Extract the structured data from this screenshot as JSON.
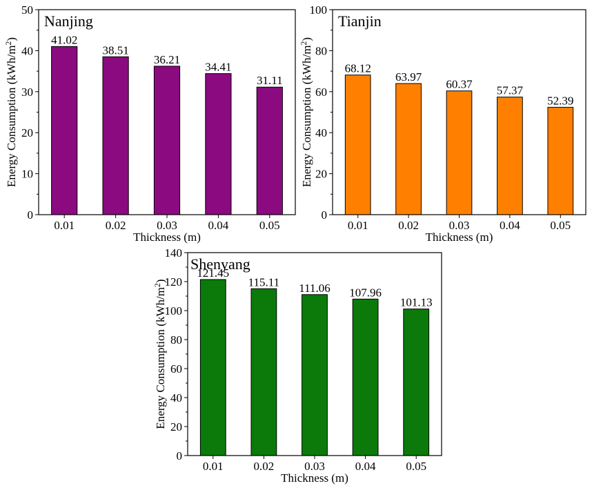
{
  "chart_data": [
    {
      "type": "bar",
      "title": "Nanjing",
      "categories": [
        "0.01",
        "0.02",
        "0.03",
        "0.04",
        "0.05"
      ],
      "values": [
        41.02,
        38.51,
        36.21,
        34.41,
        31.11
      ],
      "value_labels": [
        "41.02",
        "38.51",
        "36.21",
        "34.41",
        "31.11"
      ],
      "xlabel": "Thickness (m)",
      "ylabel": "Energy Consumption (kWh/m",
      "ylabel_sup": "2",
      "ylabel_end": ")",
      "ylim": [
        0,
        50
      ],
      "yticks": [
        0,
        10,
        20,
        30,
        40,
        50
      ],
      "color": "#8b0a80"
    },
    {
      "type": "bar",
      "title": "Tianjin",
      "categories": [
        "0.01",
        "0.02",
        "0.03",
        "0.04",
        "0.05"
      ],
      "values": [
        68.12,
        63.97,
        60.37,
        57.37,
        52.39
      ],
      "value_labels": [
        "68.12",
        "63.97",
        "60.37",
        "57.37",
        "52.39"
      ],
      "xlabel": "Thickness (m)",
      "ylabel": "Energy Consumption (kWh/m",
      "ylabel_sup": "2",
      "ylabel_end": ")",
      "ylim": [
        0,
        100
      ],
      "yticks": [
        0,
        20,
        40,
        60,
        80,
        100
      ],
      "color": "#ff8000"
    },
    {
      "type": "bar",
      "title": "Shenyang",
      "categories": [
        "0.01",
        "0.02",
        "0.03",
        "0.04",
        "0.05"
      ],
      "values": [
        121.45,
        115.11,
        111.06,
        107.96,
        101.13
      ],
      "value_labels": [
        "121.45",
        "115.11",
        "111.06",
        "107.96",
        "101.13"
      ],
      "xlabel": "Thickness (m)",
      "ylabel": "Energy Consumption (kWh/m",
      "ylabel_sup": "2",
      "ylabel_end": ")",
      "ylim": [
        0,
        140
      ],
      "yticks": [
        0,
        20,
        40,
        60,
        80,
        100,
        120,
        140
      ],
      "color": "#0b7a0b"
    }
  ]
}
